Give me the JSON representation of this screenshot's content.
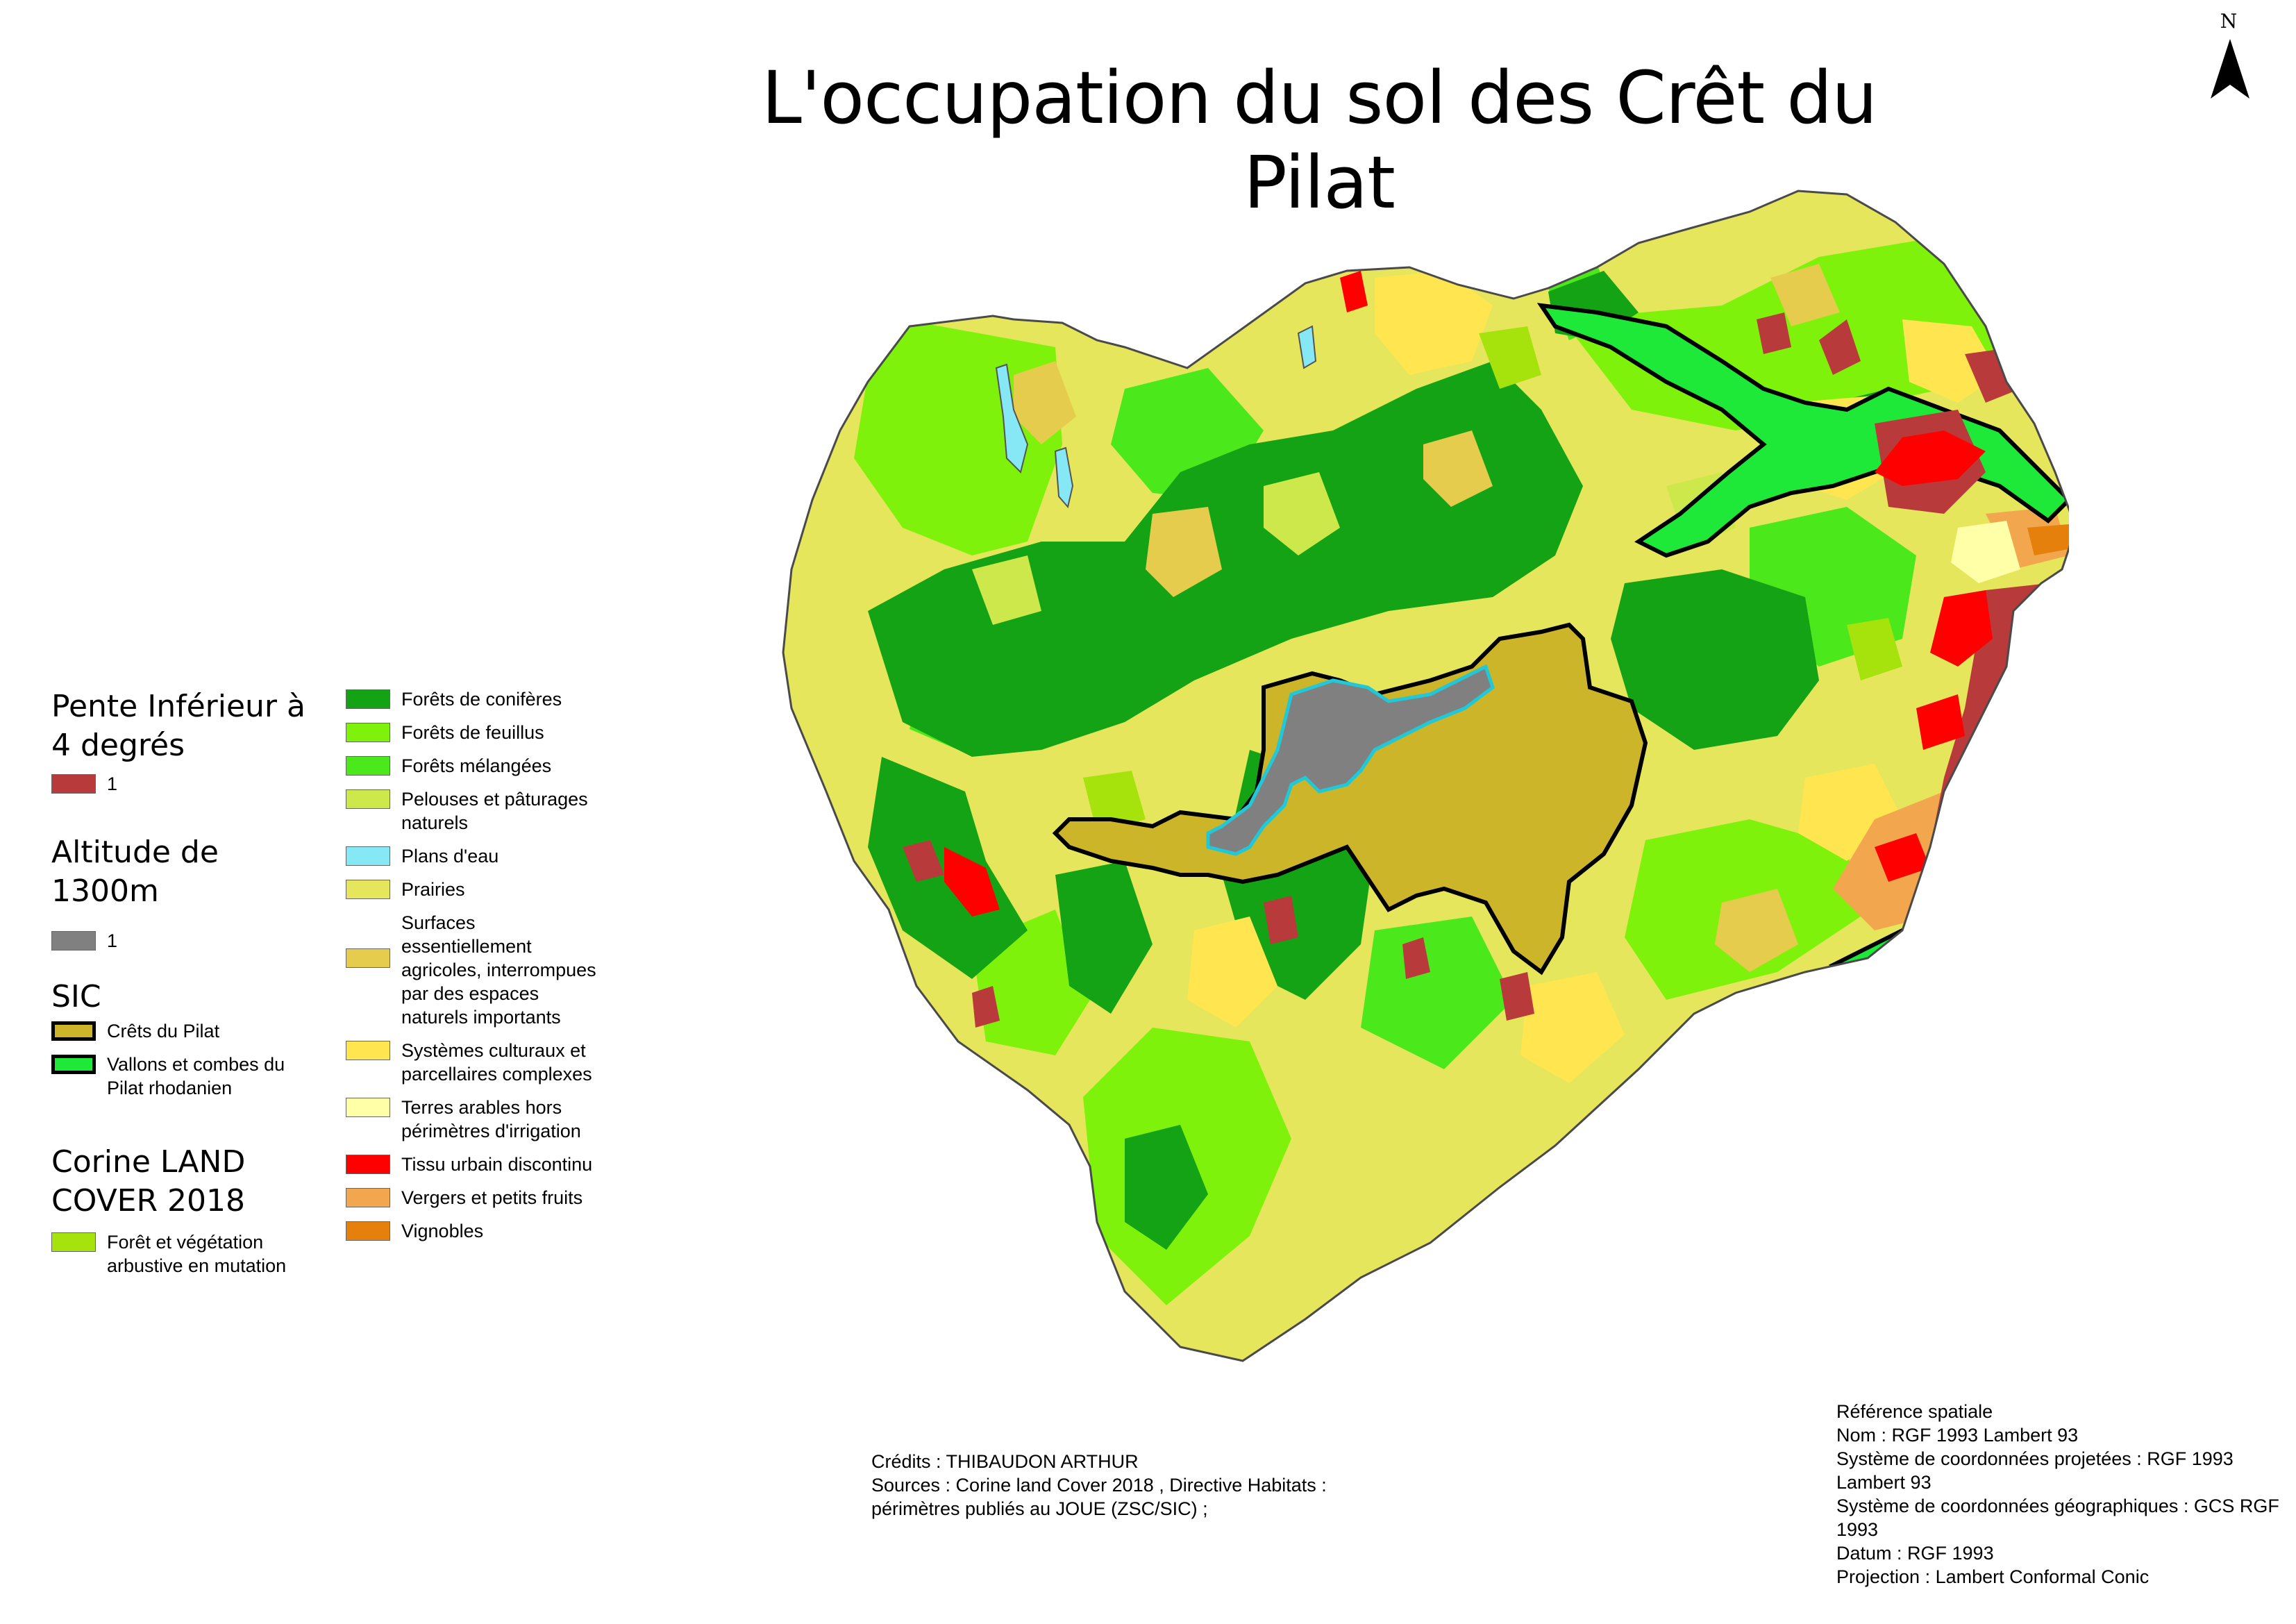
{
  "title": "L'occupation du sol des Crêt du Pilat",
  "north_arrow": {
    "label": "N",
    "icon": "north-arrow-icon"
  },
  "legend": {
    "slope": {
      "heading": "Pente Inférieur à 4 degrés",
      "items": [
        {
          "label": "1",
          "color": "#b83a3a"
        }
      ]
    },
    "altitude": {
      "heading": "Altitude de 1300m",
      "items": [
        {
          "label": "1",
          "color": "#808080"
        }
      ]
    },
    "sic": {
      "heading": "SIC",
      "items": [
        {
          "label": "Crêts du Pilat",
          "color": "#cdb52a"
        },
        {
          "label": "Vallons et combes du Pilat rhodanien",
          "color": "#1ee838"
        }
      ]
    },
    "corine": {
      "heading": "Corine LAND COVER 2018",
      "items": [
        {
          "label": "Forêt et végétation arbustive en mutation",
          "color": "#a6e20c"
        },
        {
          "label": "Forêts de conifères",
          "color": "#14a314"
        },
        {
          "label": "Forêts de feuillus",
          "color": "#7ef20a"
        },
        {
          "label": "Forêts mélangées",
          "color": "#4be81c"
        },
        {
          "label": "Pelouses et pâturages naturels",
          "color": "#cde84a"
        },
        {
          "label": "Plans d'eau",
          "color": "#86e8f5"
        },
        {
          "label": "Prairies",
          "color": "#e6e65c"
        },
        {
          "label": "Surfaces essentiellement agricoles, interrompues par des espaces naturels importants",
          "color": "#e6cc4d"
        },
        {
          "label": "Systèmes culturaux et parcellaires complexes",
          "color": "#ffe650"
        },
        {
          "label": "Terres arables hors périmètres d'irrigation",
          "color": "#ffffa8"
        },
        {
          "label": "Tissu urbain discontinu",
          "color": "#ff0000"
        },
        {
          "label": "Vergers et petits fruits",
          "color": "#f2a64d"
        },
        {
          "label": "Vignobles",
          "color": "#e6800d"
        }
      ]
    }
  },
  "credits": {
    "line1": "Crédits : THIBAUDON ARTHUR",
    "line2": "Sources : Corine land Cover 2018 , Directive Habitats :",
    "line3": "périmètres publiés au JOUE (ZSC/SIC) ;"
  },
  "spatial_reference": {
    "heading": "Référence spatiale",
    "name": "Nom : RGF 1993 Lambert 93",
    "projected_1": "Système de coordonnées projetées : RGF 1993",
    "projected_2": "Lambert 93",
    "geographic_1": "Système de coordonnées géographiques : GCS RGF",
    "geographic_2": "1993",
    "datum": "Datum : RGF 1993",
    "projection": "Projection : Lambert Conformal Conic"
  }
}
